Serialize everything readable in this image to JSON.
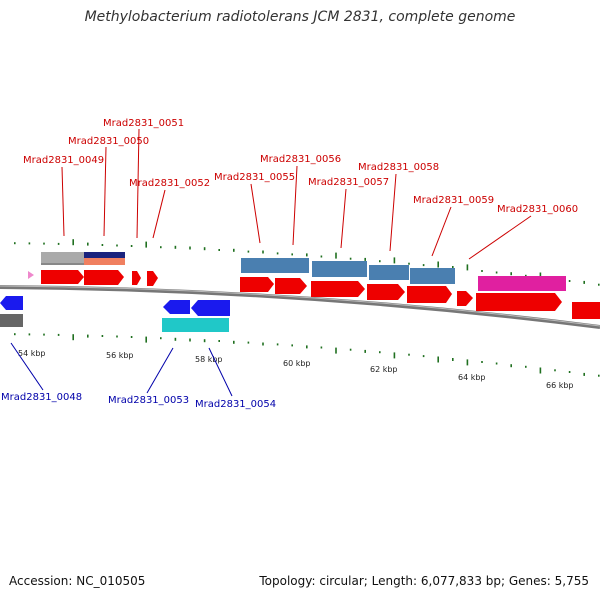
{
  "title": "Methylobacterium radiotolerans JCM 2831, complete genome",
  "accession_text": "Accession: NC_010505",
  "topology_text": "Topology: circular; Length: 6,077,833 bp; Genes: 5,755",
  "colors": {
    "backbone": "#777777",
    "cds_red": "#ee0000",
    "steel_blue": "#4a7fb0",
    "blue": "#1a1aee",
    "cyan": "#20c8c8",
    "magenta": "#e020a0",
    "gray": "#aaaaaa",
    "navy": "#1a237e",
    "salmon": "#f08060",
    "gc_tick": "#207020",
    "label_red": "#cc0000",
    "label_blue": "#0000aa"
  },
  "ticks": [
    "54 kbp",
    "56 kbp",
    "58 kbp",
    "60 kbp",
    "62 kbp",
    "64 kbp",
    "66 kbp"
  ],
  "labels_top": [
    "Mrad2831_0049",
    "Mrad2831_0050",
    "Mrad2831_0051",
    "Mrad2831_0052",
    "Mrad2831_0055",
    "Mrad2831_0056",
    "Mrad2831_0057",
    "Mrad2831_0058",
    "Mrad2831_0059",
    "Mrad2831_0060"
  ],
  "labels_bottom": [
    "Mrad2831_0048",
    "Mrad2831_0053",
    "Mrad2831_0054"
  ]
}
